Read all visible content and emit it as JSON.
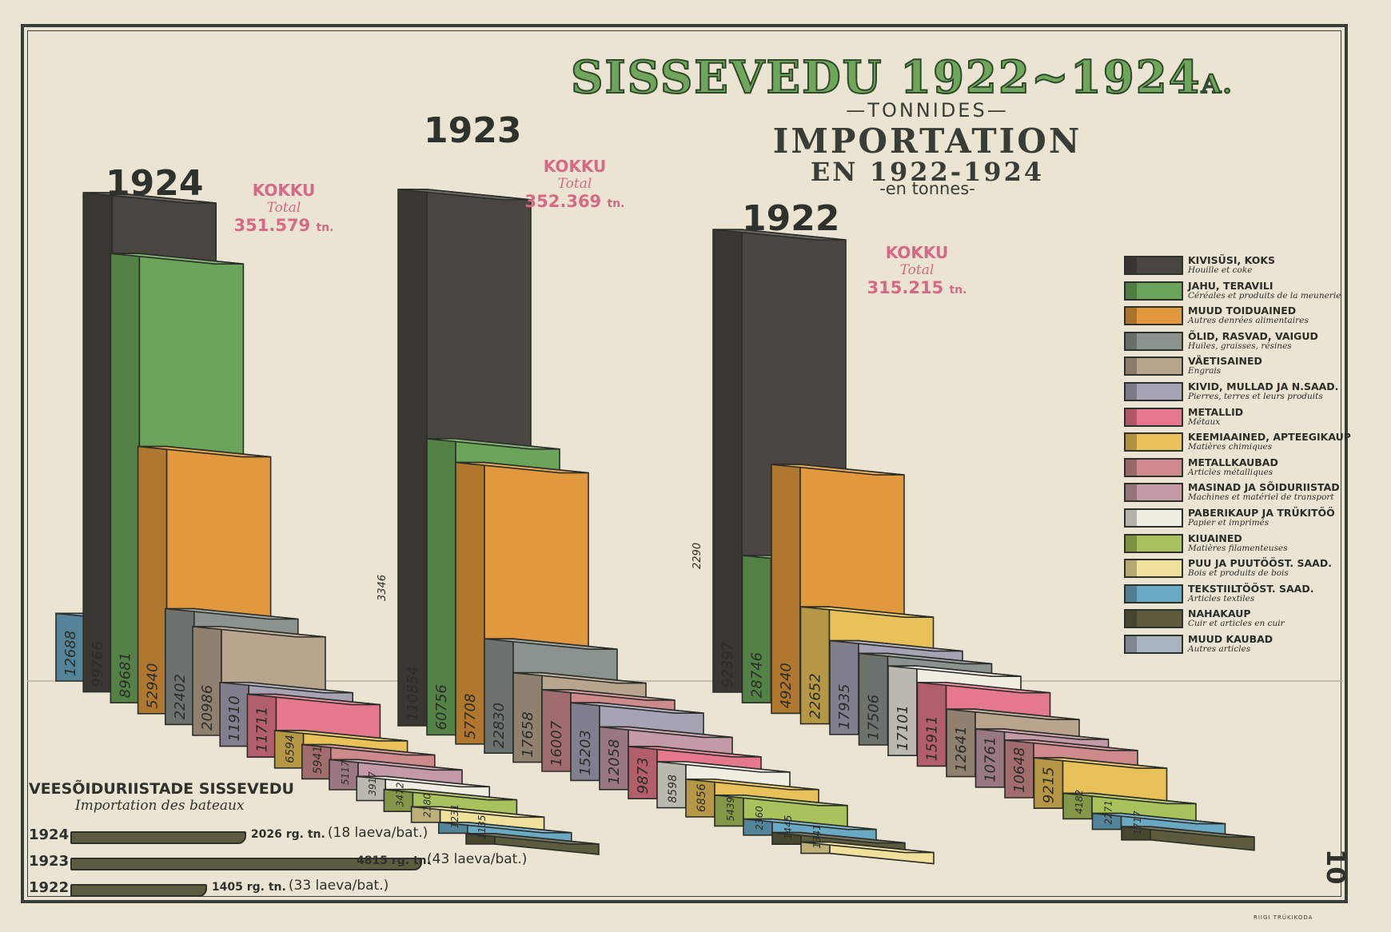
{
  "title": {
    "main": "SISSEVEDU 1922~1924",
    "main_suffix": "A.",
    "unit": "—TONNIDES—",
    "fr_line1": "IMPORTATION",
    "fr_line2": "EN 1922-1924",
    "fr_unit": "-en tonnes-"
  },
  "colors": {
    "coal": "#4a4540",
    "flour": "#6aa55a",
    "food": "#e2983c",
    "oil": "#8a948c",
    "fert": "#b9a48e",
    "stone": "#a6a3b5",
    "metals": "#e5788c",
    "chem": "#e8c258",
    "metalware": "#cf8a8c",
    "machines": "#c49aa6",
    "paper": "#f1ede3",
    "fibres": "#a8c25c",
    "wood": "#f1e09a",
    "textile": "#6aa9c4",
    "leather": "#5e5a3e",
    "other": "#a8b3bd"
  },
  "legend": [
    {
      "label": "KIVISÜSI, KOKS",
      "sub": "Houille et coke",
      "color": "#4a4540"
    },
    {
      "label": "JAHU, TERAVILI",
      "sub": "Céréales et produits de la meunerie",
      "color": "#6aa55a"
    },
    {
      "label": "MUUD TOIDUAINED",
      "sub": "Autres denrées alimentaires",
      "color": "#e2983c"
    },
    {
      "label": "ÕLID, RASVAD, VAIGUD",
      "sub": "Huiles, graisses, résines",
      "color": "#8a948c"
    },
    {
      "label": "VÄETISAINED",
      "sub": "Engrais",
      "color": "#b9a48e"
    },
    {
      "label": "KIVID, MULLAD JA N.SAAD.",
      "sub": "Pierres, terres et leurs produits",
      "color": "#a6a3b5"
    },
    {
      "label": "METALLID",
      "sub": "Métaux",
      "color": "#e5788c"
    },
    {
      "label": "KEEMIAAINED, APTEEGIKAUP",
      "sub": "Matières chimiques",
      "color": "#e8c258"
    },
    {
      "label": "METALLKAUBAD",
      "sub": "Articles métalliques",
      "color": "#cf8a8c"
    },
    {
      "label": "MASINAD JA SÕIDURIISTAD",
      "sub": "Machines et matériel de transport",
      "color": "#c49aa6"
    },
    {
      "label": "PABERIKAUP JA TRÜKITÖÖ",
      "sub": "Papier et imprimés",
      "color": "#f1ede3"
    },
    {
      "label": "KIUAINED",
      "sub": "Matières filamenteuses",
      "color": "#a8c25c"
    },
    {
      "label": "PUU JA PUUTÖÖST. SAAD.",
      "sub": "Bois et produits de bois",
      "color": "#f1e09a"
    },
    {
      "label": "TEKSTIILTÖÖST. SAAD.",
      "sub": "Articles textiles",
      "color": "#6aa9c4"
    },
    {
      "label": "NAHAKAUP",
      "sub": "Cuir et articles en cuir",
      "color": "#5e5a3e"
    },
    {
      "label": "MUUD KAUBAD",
      "sub": "Autres articles",
      "color": "#a8b3bd"
    }
  ],
  "chart_data": [
    {
      "type": "bar",
      "year": "1924",
      "total_label": "KOKKU",
      "total_sub": "Total",
      "total_value": "351.579",
      "total_unit": "tn.",
      "bars": [
        {
          "cat": "MUUD KAUBAD",
          "value": 12688,
          "label": "12688",
          "color": "#6aa9c4"
        },
        {
          "cat": "KIVISÜSI, KOKS",
          "value": 99766,
          "label": "99766",
          "color": "#4a4540"
        },
        {
          "cat": "JAHU, TERAVILI",
          "value": 89681,
          "label": "89681",
          "color": "#6aa55a"
        },
        {
          "cat": "MUUD TOIDUAINED",
          "value": 52940,
          "label": "52940",
          "color": "#e2983c"
        },
        {
          "cat": "ÕLID, RASVAD, VAIGUD",
          "value": 22402,
          "label": "22402",
          "color": "#8a948c"
        },
        {
          "cat": "VÄETISAINED",
          "value": 20986,
          "label": "20986",
          "color": "#b9a48e"
        },
        {
          "cat": "KIVID, MULLAD JA N.SAAD.",
          "value": 11910,
          "label": "11910",
          "color": "#a6a3b5"
        },
        {
          "cat": "METALLID",
          "value": 11711,
          "label": "11711",
          "color": "#e5788c"
        },
        {
          "cat": "KEEMIAAINED, APTEEGIKAUP",
          "value": 6594,
          "label": "6594",
          "color": "#e8c258"
        },
        {
          "cat": "METALLKAUBAD",
          "value": 5941,
          "label": "5941",
          "color": "#cf8a8c"
        },
        {
          "cat": "MASINAD JA SÕIDURIISTAD",
          "value": 5117,
          "label": "5117",
          "color": "#c49aa6"
        },
        {
          "cat": "PABERIKAUP JA TRÜKITÖÖ",
          "value": 3917,
          "label": "3917",
          "color": "#f1ede3"
        },
        {
          "cat": "KIUAINED",
          "value": 3472,
          "label": "3472",
          "color": "#a8c25c"
        },
        {
          "cat": "PUU JA PUUTÖÖST. SAAD.",
          "value": 2180,
          "label": "2180",
          "color": "#f1e09a"
        },
        {
          "cat": "TEKSTIILTÖÖST. SAAD.",
          "value": 1231,
          "label": "1231",
          "color": "#6aa9c4"
        },
        {
          "cat": "NAHAKAUP",
          "value": 1135,
          "label": "1135",
          "color": "#5e5a3e"
        }
      ]
    },
    {
      "type": "bar",
      "year": "1923",
      "total_label": "KOKKU",
      "total_sub": "Total",
      "total_value": "352.369",
      "total_unit": "tn.",
      "top_label": "3346",
      "bars": [
        {
          "cat": "KIVISÜSI, KOKS",
          "value": 110854,
          "label": "110854",
          "color": "#4a4540"
        },
        {
          "cat": "JAHU, TERAVILI",
          "value": 60756,
          "label": "60756",
          "color": "#6aa55a"
        },
        {
          "cat": "MUUD TOIDUAINED",
          "value": 57708,
          "label": "57708",
          "color": "#e2983c"
        },
        {
          "cat": "ÕLID, RASVAD, VAIGUD",
          "value": 22830,
          "label": "22830",
          "color": "#8a948c"
        },
        {
          "cat": "VÄETISAINED",
          "value": 17658,
          "label": "17658",
          "color": "#b9a48e"
        },
        {
          "cat": "METALLID",
          "value": 16007,
          "label": "16007",
          "color": "#cf8a8c"
        },
        {
          "cat": "KIVID, MULLAD JA N.SAAD.",
          "value": 15203,
          "label": "15203",
          "color": "#a6a3b5"
        },
        {
          "cat": "MASINAD JA SÕIDURIISTAD",
          "value": 12058,
          "label": "12058",
          "color": "#c49aa6"
        },
        {
          "cat": "METALLKAUBAD",
          "value": 9873,
          "label": "9873",
          "color": "#e5788c"
        },
        {
          "cat": "PABERIKAUP JA TRÜKITÖÖ",
          "value": 8598,
          "label": "8598",
          "color": "#f1ede3"
        },
        {
          "cat": "KEEMIAAINED, APTEEGIKAUP",
          "value": 6856,
          "label": "6856",
          "color": "#e8c258"
        },
        {
          "cat": "KIUAINED",
          "value": 5439,
          "label": "5439",
          "color": "#a8c25c"
        },
        {
          "cat": "TEKSTIILTÖÖST. SAAD.",
          "value": 2360,
          "label": "2360",
          "color": "#6aa9c4"
        },
        {
          "cat": "NAHAKAUP",
          "value": 1445,
          "label": "1445",
          "color": "#5e5a3e"
        },
        {
          "cat": "PUU JA PUUTÖÖST. SAAD.",
          "value": 1341,
          "label": "1341",
          "color": "#f1e09a"
        }
      ]
    },
    {
      "type": "bar",
      "year": "1922",
      "total_label": "KOKKU",
      "total_sub": "Total",
      "total_value": "315.215",
      "total_unit": "tn.",
      "top_label": "2290",
      "bars": [
        {
          "cat": "KIVISÜSI, KOKS",
          "value": 92397,
          "label": "92397",
          "color": "#4a4540"
        },
        {
          "cat": "JAHU, TERAVILI",
          "value": 28746,
          "label": "28746",
          "color": "#6aa55a"
        },
        {
          "cat": "MUUD TOIDUAINED",
          "value": 49240,
          "label": "49240",
          "color": "#e2983c"
        },
        {
          "cat": "KEEMIAAINED, APTEEGIKAUP",
          "value": 22652,
          "label": "22652",
          "color": "#e8c258"
        },
        {
          "cat": "KIVID, MULLAD JA N.SAAD.",
          "value": 17935,
          "label": "17935",
          "color": "#a6a3b5"
        },
        {
          "cat": "ÕLID, RASVAD, VAIGUD",
          "value": 17506,
          "label": "17506",
          "color": "#8a948c"
        },
        {
          "cat": "PABERIKAUP JA TRÜKITÖÖ",
          "value": 17101,
          "label": "17101",
          "color": "#f1ede3"
        },
        {
          "cat": "METALLID",
          "value": 15911,
          "label": "15911",
          "color": "#e5788c"
        },
        {
          "cat": "VÄETISAINED",
          "value": 12641,
          "label": "12641",
          "color": "#b9a48e"
        },
        {
          "cat": "MASINAD JA SÕIDURIISTAD",
          "value": 10761,
          "label": "10761",
          "color": "#c49aa6"
        },
        {
          "cat": "METALLKAUBAD",
          "value": 10648,
          "label": "10648",
          "color": "#cf8a8c"
        },
        {
          "cat": "PUU JA PUUTÖÖST. SAAD.",
          "value": 9215,
          "label": "9215",
          "color": "#e8c258"
        },
        {
          "cat": "KIUAINED",
          "value": 4182,
          "label": "4182",
          "color": "#a8c25c"
        },
        {
          "cat": "TEKSTIILTÖÖST. SAAD.",
          "value": 2271,
          "label": "2271",
          "color": "#6aa9c4"
        },
        {
          "cat": "NAHAKAUP",
          "value": 1717,
          "label": "1717",
          "color": "#5e5a3e"
        }
      ]
    }
  ],
  "ships": {
    "title": "VEESÕIDURIISTADE SISSEVEDU",
    "subtitle": "Importation des bateaux",
    "rows": [
      {
        "year": "1924",
        "value": 2026,
        "value_label": "2026 rg. tn.",
        "count": "(18 laeva/bat.)"
      },
      {
        "year": "1923",
        "value": 4815,
        "value_label": "4815 rg. tn.",
        "count": "(43 laeva/bat.)"
      },
      {
        "year": "1922",
        "value": 1405,
        "value_label": "1405 rg. tn.",
        "count": "(33 laeva/bat.)"
      }
    ]
  },
  "page_number": "10",
  "printer": "RIIGI TRÜKIKODA"
}
